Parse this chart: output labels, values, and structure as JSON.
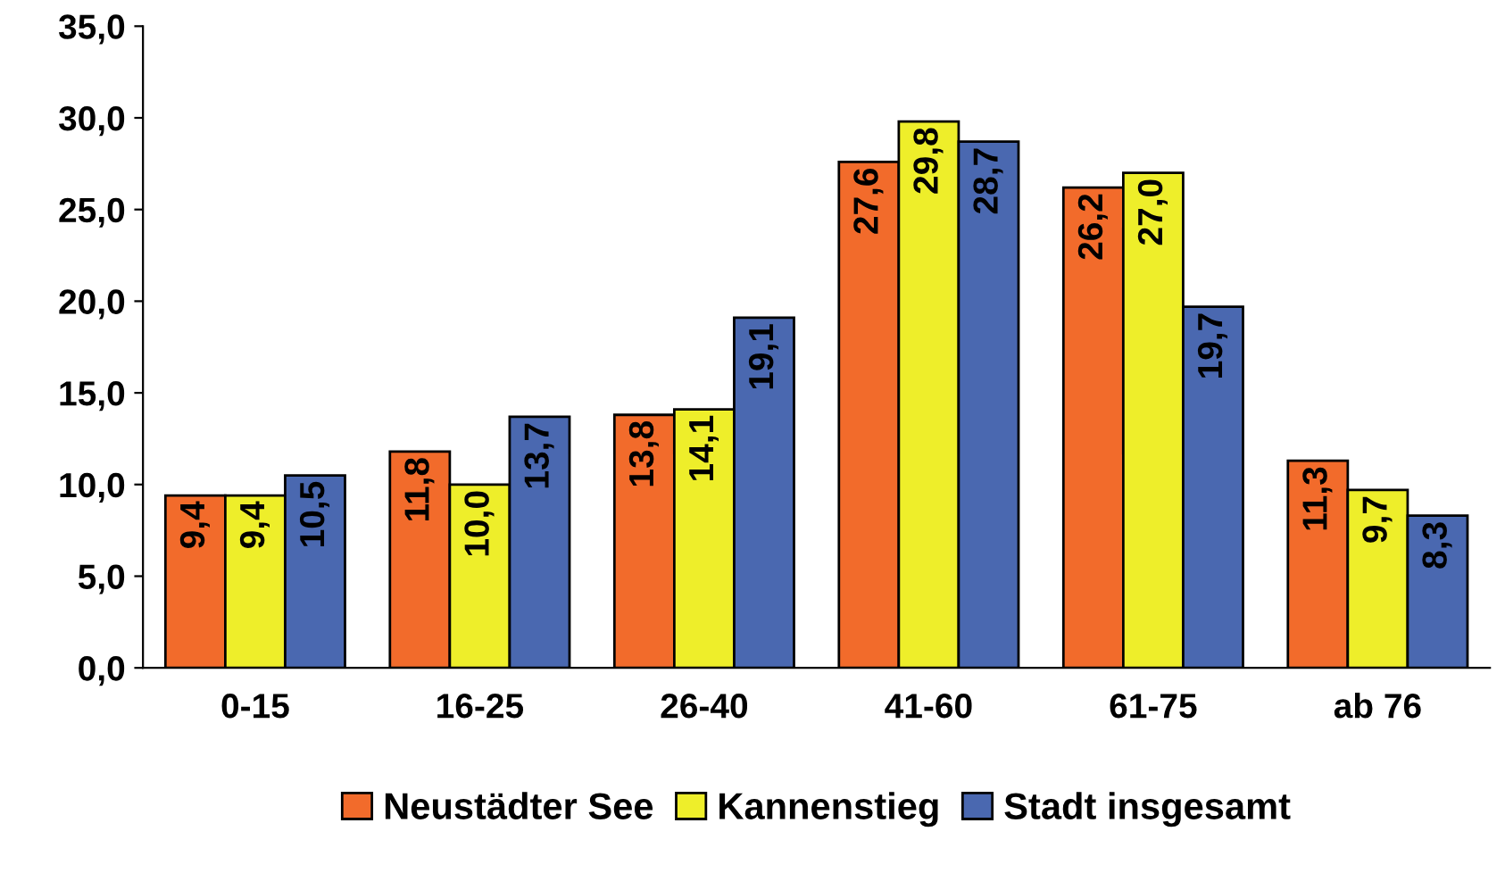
{
  "chart_data": {
    "type": "bar",
    "categories": [
      "0-15",
      "16-25",
      "26-40",
      "41-60",
      "61-75",
      "ab 76"
    ],
    "series": [
      {
        "name": "Neustädter See",
        "color": "#f26b2b",
        "values": [
          9.4,
          11.8,
          13.8,
          27.6,
          26.2,
          11.3
        ],
        "value_labels": [
          "9,4",
          "11,8",
          "13,8",
          "27,6",
          "26,2",
          "11,3"
        ]
      },
      {
        "name": "Kannenstieg",
        "color": "#eeee2a",
        "values": [
          9.4,
          10.0,
          14.1,
          29.8,
          27.0,
          9.7
        ],
        "value_labels": [
          "9,4",
          "10,0",
          "14,1",
          "29,8",
          "27,0",
          "9,7"
        ]
      },
      {
        "name": "Stadt insgesamt",
        "color": "#4a68b0",
        "values": [
          10.5,
          13.7,
          19.1,
          28.7,
          19.7,
          8.3
        ],
        "value_labels": [
          "10,5",
          "13,7",
          "19,1",
          "28,7",
          "19,7",
          "8,3"
        ]
      }
    ],
    "ylim": [
      0,
      35
    ],
    "yticks": [
      {
        "value": 0,
        "label": "0,0"
      },
      {
        "value": 5,
        "label": "5,0"
      },
      {
        "value": 10,
        "label": "10,0"
      },
      {
        "value": 15,
        "label": "15,0"
      },
      {
        "value": 20,
        "label": "20,0"
      },
      {
        "value": 25,
        "label": "25,0"
      },
      {
        "value": 30,
        "label": "30,0"
      },
      {
        "value": 35,
        "label": "35,0"
      }
    ],
    "grid": false,
    "legend": "bottom"
  }
}
